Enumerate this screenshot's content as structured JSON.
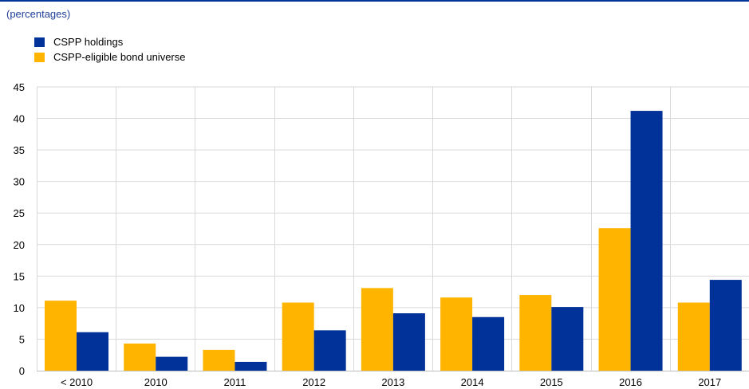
{
  "subtitle": "(percentages)",
  "chart_data": {
    "type": "bar",
    "categories": [
      "< 2010",
      "2010",
      "2011",
      "2012",
      "2013",
      "2014",
      "2015",
      "2016",
      "2017"
    ],
    "series": [
      {
        "name": "CSPP-eligible bond universe",
        "color": "#ffb400",
        "values": [
          11.1,
          4.3,
          3.3,
          10.8,
          13.1,
          11.6,
          12.0,
          22.6,
          10.8
        ]
      },
      {
        "name": "CSPP holdings",
        "color": "#003299",
        "values": [
          6.1,
          2.2,
          1.4,
          6.4,
          9.1,
          8.5,
          10.1,
          41.2,
          14.4
        ]
      }
    ],
    "legend": [
      {
        "label": "CSPP holdings",
        "color": "#003299"
      },
      {
        "label": "CSPP-eligible bond universe",
        "color": "#ffb400"
      }
    ],
    "y_ticks": [
      "0",
      "5",
      "10",
      "15",
      "20",
      "25",
      "30",
      "35",
      "40",
      "45"
    ],
    "ylim": [
      0,
      45
    ],
    "grid": true,
    "legend_position": "top-left"
  }
}
